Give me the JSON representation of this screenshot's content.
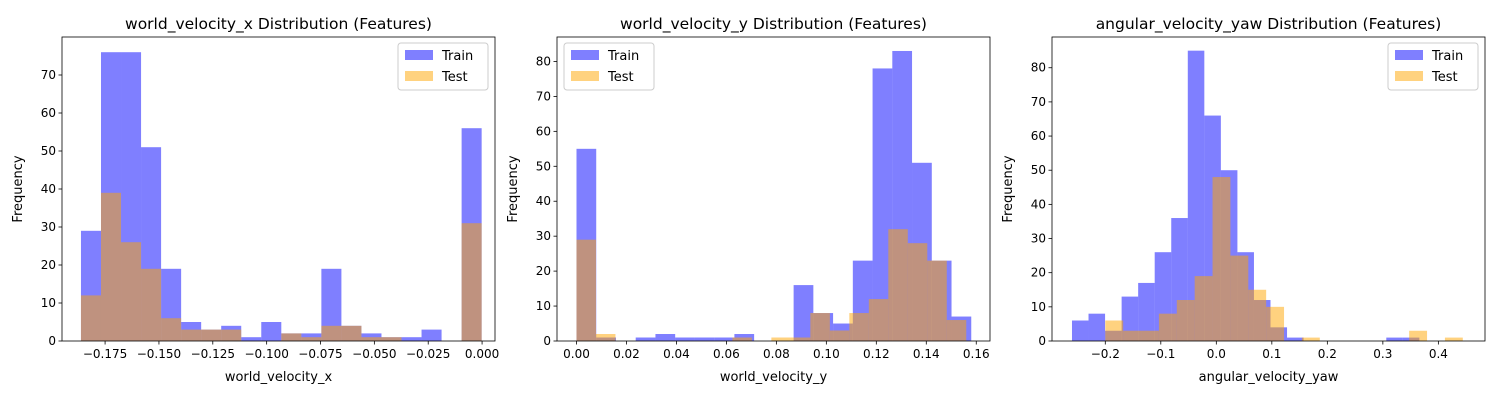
{
  "chart_data": [
    {
      "type": "bar",
      "title": "world_velocity_x Distribution (Features)",
      "xlabel": "world_velocity_x",
      "ylabel": "Frequency",
      "xlim": [
        -0.195,
        0.006
      ],
      "ylim": [
        0,
        80
      ],
      "xticks": [
        -0.175,
        -0.15,
        -0.125,
        -0.1,
        -0.075,
        -0.05,
        -0.025,
        0.0
      ],
      "xtick_labels": [
        "−0.175",
        "−0.150",
        "−0.125",
        "−0.100",
        "−0.075",
        "−0.050",
        "−0.025",
        "0.000"
      ],
      "yticks": [
        0,
        10,
        20,
        30,
        40,
        50,
        60,
        70
      ],
      "ytick_labels": [
        "0",
        "10",
        "20",
        "30",
        "40",
        "50",
        "60",
        "70"
      ],
      "legend": "top-right",
      "grid": false,
      "series": [
        {
          "name": "Train",
          "color": "#0000ff",
          "opacity": 0.5,
          "bin_edges": [
            -0.1862,
            -0.1769,
            -0.1676,
            -0.1583,
            -0.149,
            -0.1397,
            -0.1304,
            -0.1211,
            -0.1118,
            -0.1025,
            -0.0932,
            -0.0839,
            -0.0746,
            -0.0653,
            -0.056,
            -0.0467,
            -0.0374,
            -0.0281,
            -0.0188,
            -0.0095,
            -0.0002
          ],
          "counts": [
            29,
            76,
            76,
            51,
            19,
            5,
            3,
            4,
            1,
            5,
            2,
            2,
            19,
            4,
            2,
            1,
            1,
            3,
            0,
            56
          ]
        },
        {
          "name": "Test",
          "color": "#ffa500",
          "opacity": 0.5,
          "bin_edges": [
            -0.1862,
            -0.1769,
            -0.1676,
            -0.1583,
            -0.149,
            -0.1397,
            -0.1304,
            -0.1211,
            -0.1118,
            -0.1025,
            -0.0932,
            -0.0839,
            -0.0746,
            -0.0653,
            -0.056,
            -0.0467,
            -0.0374,
            -0.0281,
            -0.0188,
            -0.0095,
            -0.0002
          ],
          "counts": [
            12,
            39,
            26,
            19,
            6,
            3,
            3,
            3,
            0,
            0,
            2,
            1,
            4,
            4,
            1,
            1,
            0,
            0,
            0,
            31
          ]
        }
      ]
    },
    {
      "type": "bar",
      "title": "world_velocity_y Distribution (Features)",
      "xlabel": "world_velocity_y",
      "ylabel": "Frequency",
      "xlim": [
        -0.0078,
        0.1655
      ],
      "ylim": [
        0,
        87
      ],
      "xticks": [
        0.0,
        0.02,
        0.04,
        0.06,
        0.08,
        0.1,
        0.12,
        0.14,
        0.16
      ],
      "xtick_labels": [
        "0.00",
        "0.02",
        "0.04",
        "0.06",
        "0.08",
        "0.10",
        "0.12",
        "0.14",
        "0.16"
      ],
      "yticks": [
        0,
        10,
        20,
        30,
        40,
        50,
        60,
        70,
        80
      ],
      "ytick_labels": [
        "0",
        "10",
        "20",
        "30",
        "40",
        "50",
        "60",
        "70",
        "80"
      ],
      "legend": "top-left",
      "grid": false,
      "series": [
        {
          "name": "Train",
          "color": "#0000ff",
          "opacity": 0.5,
          "bin_edges": [
            0.0,
            0.0079,
            0.0158,
            0.0237,
            0.0316,
            0.0395,
            0.0474,
            0.0553,
            0.0632,
            0.0711,
            0.079,
            0.0869,
            0.0948,
            0.1027,
            0.1106,
            0.1185,
            0.1264,
            0.1343,
            0.1422,
            0.1501,
            0.158
          ],
          "counts": [
            55,
            1,
            0,
            1,
            2,
            1,
            1,
            1,
            2,
            0,
            0,
            16,
            8,
            5,
            23,
            78,
            83,
            51,
            23,
            7
          ]
        },
        {
          "name": "Test",
          "color": "#ffa500",
          "opacity": 0.5,
          "bin_edges": [
            0.0,
            0.0078,
            0.0156,
            0.0234,
            0.0312,
            0.039,
            0.0468,
            0.0546,
            0.0624,
            0.0702,
            0.078,
            0.0858,
            0.0936,
            0.1014,
            0.1092,
            0.117,
            0.1248,
            0.1326,
            0.1404,
            0.1482,
            0.156
          ],
          "counts": [
            29,
            2,
            0,
            0,
            0,
            0,
            0,
            0,
            1,
            0,
            1,
            1,
            8,
            3,
            8,
            12,
            32,
            28,
            23,
            6
          ]
        }
      ]
    },
    {
      "type": "bar",
      "title": "angular_velocity_yaw Distribution (Features)",
      "xlabel": "angular_velocity_yaw",
      "ylabel": "Frequency",
      "xlim": [
        -0.296,
        0.484
      ],
      "ylim": [
        0,
        89
      ],
      "xticks": [
        -0.2,
        -0.1,
        0.0,
        0.1,
        0.2,
        0.3,
        0.4
      ],
      "xtick_labels": [
        "−0.2",
        "−0.1",
        "0.0",
        "0.1",
        "0.2",
        "0.3",
        "0.4"
      ],
      "yticks": [
        0,
        10,
        20,
        30,
        40,
        50,
        60,
        70,
        80
      ],
      "ytick_labels": [
        "0",
        "10",
        "20",
        "30",
        "40",
        "50",
        "60",
        "70",
        "80"
      ],
      "legend": "top-right",
      "grid": false,
      "series": [
        {
          "name": "Train",
          "color": "#0000ff",
          "opacity": 0.5,
          "bin_edges": [
            -0.26,
            -0.2302,
            -0.2004,
            -0.1706,
            -0.1408,
            -0.111,
            -0.0812,
            -0.0514,
            -0.0216,
            0.0082,
            0.038,
            0.0678,
            0.0976,
            0.1274,
            0.1572,
            0.187,
            0.2168,
            0.2466,
            0.2764,
            0.3062,
            0.336,
            0.3658,
            0.3956
          ],
          "counts": [
            6,
            8,
            3,
            13,
            17,
            26,
            36,
            85,
            66,
            50,
            26,
            12,
            4,
            1,
            0,
            0,
            0,
            0,
            0,
            1,
            1,
            0
          ]
        },
        {
          "name": "Test",
          "color": "#ffa500",
          "opacity": 0.5,
          "bin_edges": [
            -0.2,
            -0.1678,
            -0.1356,
            -0.1034,
            -0.0712,
            -0.039,
            -0.0068,
            0.0254,
            0.0576,
            0.0898,
            0.122,
            0.1542,
            0.1864,
            0.2186,
            0.2508,
            0.283,
            0.3152,
            0.3474,
            0.3796,
            0.4118,
            0.444
          ],
          "counts": [
            6,
            3,
            3,
            8,
            12,
            19,
            48,
            25,
            15,
            10,
            0,
            1,
            0,
            0,
            0,
            0,
            0,
            3,
            0,
            1
          ]
        }
      ]
    }
  ]
}
